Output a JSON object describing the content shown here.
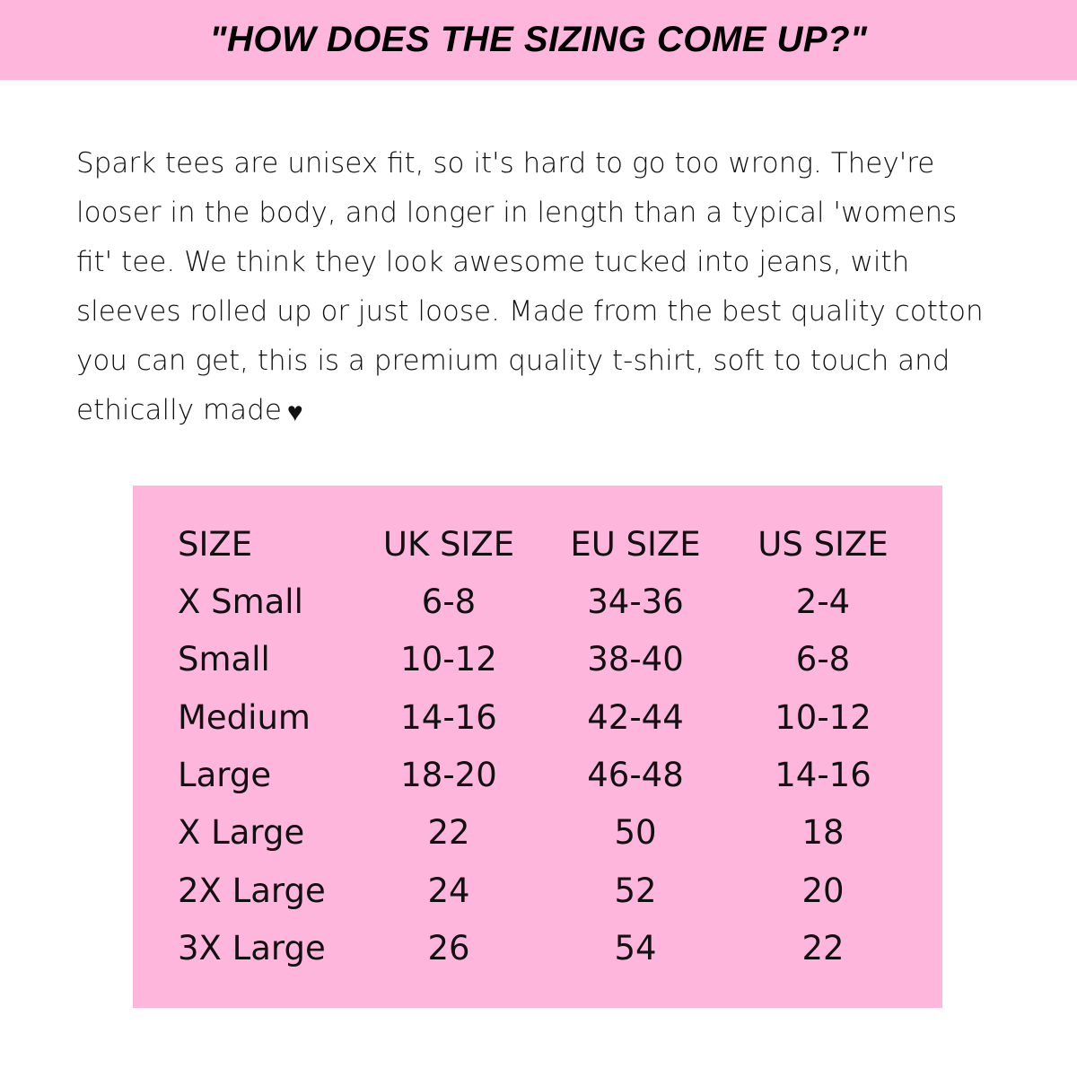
{
  "header": {
    "title": "\"HOW DOES THE SIZING COME UP?\""
  },
  "description": {
    "lines": [
      "Spark tees are unisex fit, so it's hard to go too wrong. They're",
      "looser in the body, and longer in length than a typical 'womens",
      "fit' tee. We think they look awesome tucked into jeans, with",
      "sleeves rolled up or just loose. Made from the best quality cotton",
      "you can get, this is a premium quality t-shirt, soft to touch and",
      "ethically made"
    ],
    "icon": "heart-icon"
  },
  "table": {
    "headers": [
      "SIZE",
      "UK SIZE",
      "EU SIZE",
      "US SIZE"
    ],
    "rows": [
      [
        "X Small",
        "6-8",
        "34-36",
        "2-4"
      ],
      [
        "Small",
        "10-12",
        "38-40",
        "6-8"
      ],
      [
        "Medium",
        "14-16",
        "42-44",
        "10-12"
      ],
      [
        "Large",
        "18-20",
        "46-48",
        "14-16"
      ],
      [
        "X Large",
        "22",
        "50",
        "18"
      ],
      [
        "2X Large",
        "24",
        "52",
        "20"
      ],
      [
        "3X Large",
        "26",
        "54",
        "22"
      ]
    ]
  },
  "colors": {
    "accent": "#ffb6dd",
    "text": "#111111"
  }
}
